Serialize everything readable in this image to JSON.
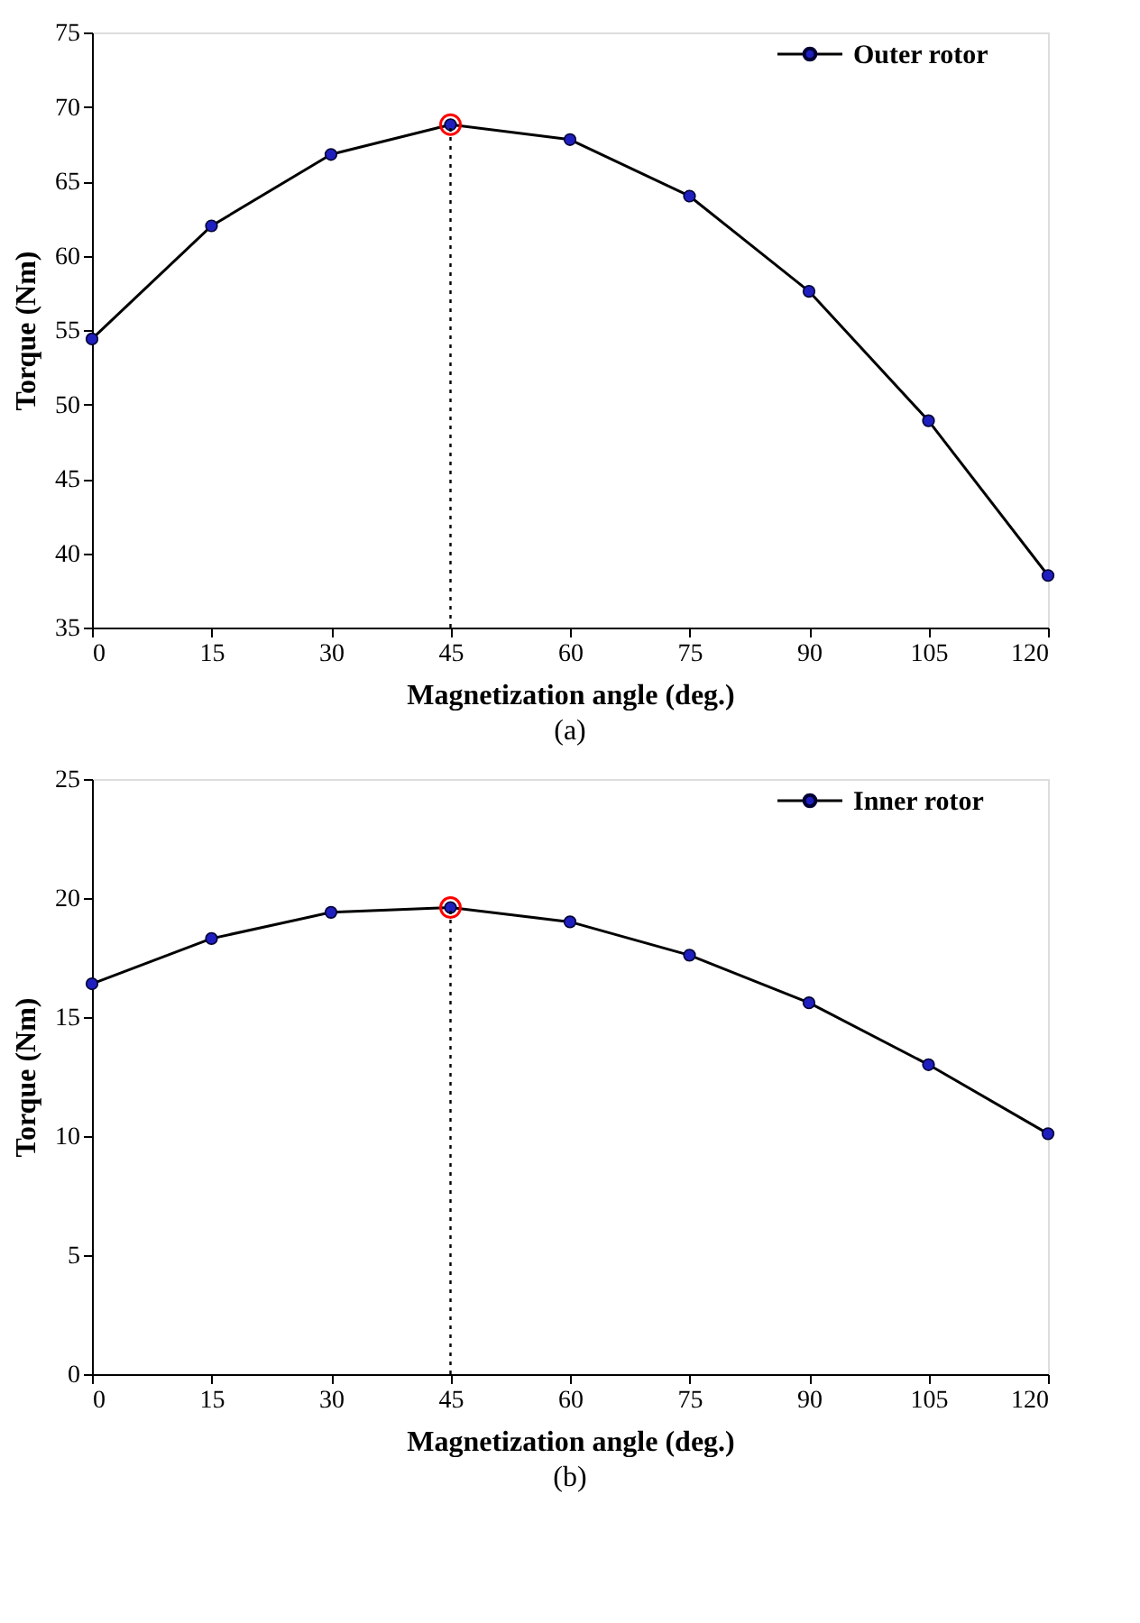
{
  "chart_data": [
    {
      "type": "line",
      "xlabel": "Magnetization angle (deg.)",
      "ylabel": "Torque (Nm)",
      "x": [
        0,
        15,
        30,
        45,
        60,
        75,
        90,
        105,
        120
      ],
      "series": [
        {
          "name": "Outer rotor",
          "color": "#000000",
          "marker": "circle",
          "values": [
            54.4,
            62.0,
            66.8,
            68.8,
            67.8,
            64.0,
            57.6,
            48.9,
            38.5
          ]
        },
        {
          "type": "scatter",
          "color": "#ff0000",
          "marker": "circle",
          "x": [
            45
          ],
          "values": [
            68.8
          ]
        }
      ],
      "xlim": [
        0,
        120
      ],
      "xticks": [
        0,
        15,
        30,
        45,
        60,
        75,
        90,
        105,
        120
      ],
      "ylim": [
        35,
        75
      ],
      "yticks": [
        35,
        40,
        45,
        50,
        55,
        60,
        65,
        70,
        75
      ],
      "ref_lines": [
        {
          "axis": "x",
          "value": 45,
          "line_style": "dotted",
          "color": "#000000"
        }
      ],
      "grid": false,
      "legend": "top right",
      "annotations": [
        "(a)"
      ]
    },
    {
      "type": "line",
      "xlabel": "Magnetization angle (deg.)",
      "ylabel": "Torque (Nm)",
      "x": [
        0,
        15,
        30,
        45,
        60,
        75,
        90,
        105,
        120
      ],
      "series": [
        {
          "name": "Inner rotor",
          "color": "#000000",
          "marker": "circle",
          "values": [
            16.4,
            18.3,
            19.4,
            19.6,
            19.0,
            17.6,
            15.6,
            13.0,
            10.1
          ]
        },
        {
          "type": "scatter",
          "color": "#ff0000",
          "marker": "circle",
          "x": [
            45
          ],
          "values": [
            19.6
          ]
        }
      ],
      "xlim": [
        0,
        120
      ],
      "xticks": [
        0,
        15,
        30,
        45,
        60,
        75,
        90,
        105,
        120
      ],
      "ylim": [
        0,
        25
      ],
      "yticks": [
        0,
        5,
        10,
        15,
        20,
        25
      ],
      "ref_lines": [
        {
          "axis": "x",
          "value": 45,
          "line_style": "dotted",
          "color": "#000000"
        }
      ],
      "grid": false,
      "legend": "top right",
      "annotations": [
        "(b)"
      ]
    }
  ]
}
